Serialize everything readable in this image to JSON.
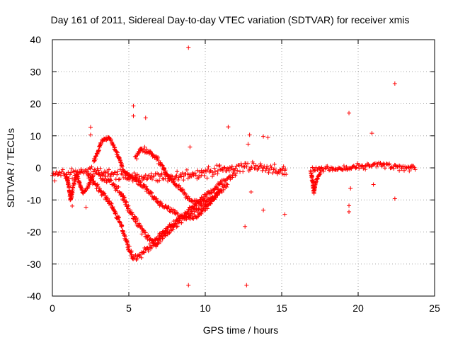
{
  "chart_data": {
    "type": "scatter",
    "title": "Day 161 of 2011, Sidereal Day-to-day VTEC variation (SDTVAR) for receiver xmis",
    "xlabel": "GPS time / hours",
    "ylabel": "SDTVAR / TECUs",
    "xlim": [
      0,
      25
    ],
    "ylim": [
      -40,
      40
    ],
    "xticks": [
      0,
      5,
      10,
      15,
      20,
      25
    ],
    "yticks": [
      -40,
      -30,
      -20,
      -10,
      0,
      10,
      20,
      30,
      40
    ],
    "grid": true,
    "marker": "+",
    "color": "#ff0000",
    "bands": [
      {
        "name": "base",
        "points": [
          [
            0,
            -2
          ],
          [
            1,
            -2.5
          ],
          [
            2,
            -1
          ],
          [
            3,
            -1
          ],
          [
            4,
            -2
          ],
          [
            5,
            -3
          ],
          [
            6,
            -3
          ],
          [
            7,
            -2.5
          ],
          [
            8,
            -3
          ],
          [
            9,
            -2
          ],
          [
            10,
            -1.5
          ],
          [
            11,
            -0.5
          ],
          [
            12,
            0
          ],
          [
            13,
            0.5
          ],
          [
            14,
            0
          ],
          [
            15,
            -1
          ],
          [
            15.3,
            -1
          ]
        ],
        "spread": 2.5
      },
      {
        "name": "arc-deep",
        "points": [
          [
            2.3,
            -2
          ],
          [
            3,
            -6
          ],
          [
            3.8,
            -11
          ],
          [
            4.5,
            -18
          ],
          [
            5,
            -25
          ],
          [
            5.3,
            -28.5
          ],
          [
            5.8,
            -27
          ],
          [
            6.5,
            -24
          ],
          [
            7.5,
            -19
          ],
          [
            8.5,
            -15
          ],
          [
            9.5,
            -11
          ],
          [
            10.5,
            -7
          ],
          [
            11.2,
            -4
          ],
          [
            12,
            -2
          ]
        ],
        "spread": 1.5
      },
      {
        "name": "arc-mid",
        "points": [
          [
            3,
            -2
          ],
          [
            4,
            -5
          ],
          [
            4.5,
            -8
          ],
          [
            5,
            -13
          ],
          [
            5.5,
            -17
          ],
          [
            6.3,
            -22
          ],
          [
            6.8,
            -24
          ],
          [
            7.5,
            -20
          ],
          [
            8.5,
            -16
          ],
          [
            9.5,
            -13
          ],
          [
            10.5,
            -9
          ],
          [
            11.5,
            -5
          ]
        ],
        "spread": 1.5
      },
      {
        "name": "arc-shallow",
        "points": [
          [
            5,
            -2
          ],
          [
            6,
            -6
          ],
          [
            7,
            -11
          ],
          [
            8,
            -14
          ],
          [
            8.8,
            -16
          ],
          [
            9.5,
            -15
          ],
          [
            10.3,
            -11
          ],
          [
            11,
            -7
          ]
        ],
        "spread": 1.2
      },
      {
        "name": "bump-early",
        "points": [
          [
            2.7,
            2
          ],
          [
            3.2,
            8
          ],
          [
            3.5,
            9.5
          ],
          [
            3.8,
            9
          ],
          [
            4.2,
            5
          ],
          [
            4.6,
            0
          ],
          [
            5,
            -3
          ]
        ],
        "spread": 1
      },
      {
        "name": "bump-six",
        "points": [
          [
            5.4,
            3
          ],
          [
            5.8,
            6
          ],
          [
            6.3,
            5
          ],
          [
            7,
            2
          ],
          [
            7.5,
            -2
          ],
          [
            8,
            -5
          ],
          [
            8.5,
            -7
          ],
          [
            9,
            -10
          ],
          [
            9.5,
            -11
          ],
          [
            10,
            -10
          ]
        ],
        "spread": 1.2
      },
      {
        "name": "dip-one",
        "points": [
          [
            0.9,
            -2
          ],
          [
            1.1,
            -6
          ],
          [
            1.2,
            -10
          ],
          [
            1.35,
            -6
          ],
          [
            1.6,
            -2
          ]
        ],
        "spread": 0.6
      },
      {
        "name": "dip-two",
        "points": [
          [
            1.6,
            -2
          ],
          [
            1.8,
            -5
          ],
          [
            2,
            -8
          ],
          [
            2.3,
            -6
          ],
          [
            2.7,
            -2
          ]
        ],
        "spread": 0.6
      },
      {
        "name": "late",
        "points": [
          [
            17,
            -0.5
          ],
          [
            17.5,
            0
          ],
          [
            18.5,
            -0.5
          ],
          [
            19.5,
            0
          ],
          [
            20.5,
            0.5
          ],
          [
            21.5,
            1
          ],
          [
            22.5,
            0
          ],
          [
            23.3,
            0
          ],
          [
            23.8,
            0.5
          ]
        ],
        "spread": 1.3
      },
      {
        "name": "late-dip",
        "points": [
          [
            16.9,
            -1
          ],
          [
            17.05,
            -5
          ],
          [
            17.1,
            -8
          ],
          [
            17.25,
            -4
          ],
          [
            17.6,
            -1
          ]
        ],
        "spread": 0.5
      }
    ],
    "outliers": [
      [
        8.9,
        37.5
      ],
      [
        22.4,
        26.3
      ],
      [
        19.4,
        17.1
      ],
      [
        5.3,
        19.3
      ],
      [
        5.3,
        16.2
      ],
      [
        6.1,
        15.6
      ],
      [
        11.5,
        12.8
      ],
      [
        2.5,
        12.7
      ],
      [
        2.5,
        10.3
      ],
      [
        12.9,
        10.3
      ],
      [
        12.8,
        7.4
      ],
      [
        13.8,
        9.8
      ],
      [
        14.1,
        9.5
      ],
      [
        20.9,
        10.8
      ],
      [
        2.2,
        -12.3
      ],
      [
        1.3,
        -11.9
      ],
      [
        19.4,
        -11.8
      ],
      [
        19.4,
        -13.7
      ],
      [
        13.8,
        -13.2
      ],
      [
        15.2,
        -14.5
      ],
      [
        12.6,
        -18.3
      ],
      [
        8.9,
        -36.6
      ],
      [
        12.7,
        -36.6
      ],
      [
        22.4,
        -9.6
      ],
      [
        19.5,
        -6.4
      ],
      [
        21,
        -5.2
      ],
      [
        13,
        -7.5
      ],
      [
        9,
        6.5
      ]
    ]
  }
}
